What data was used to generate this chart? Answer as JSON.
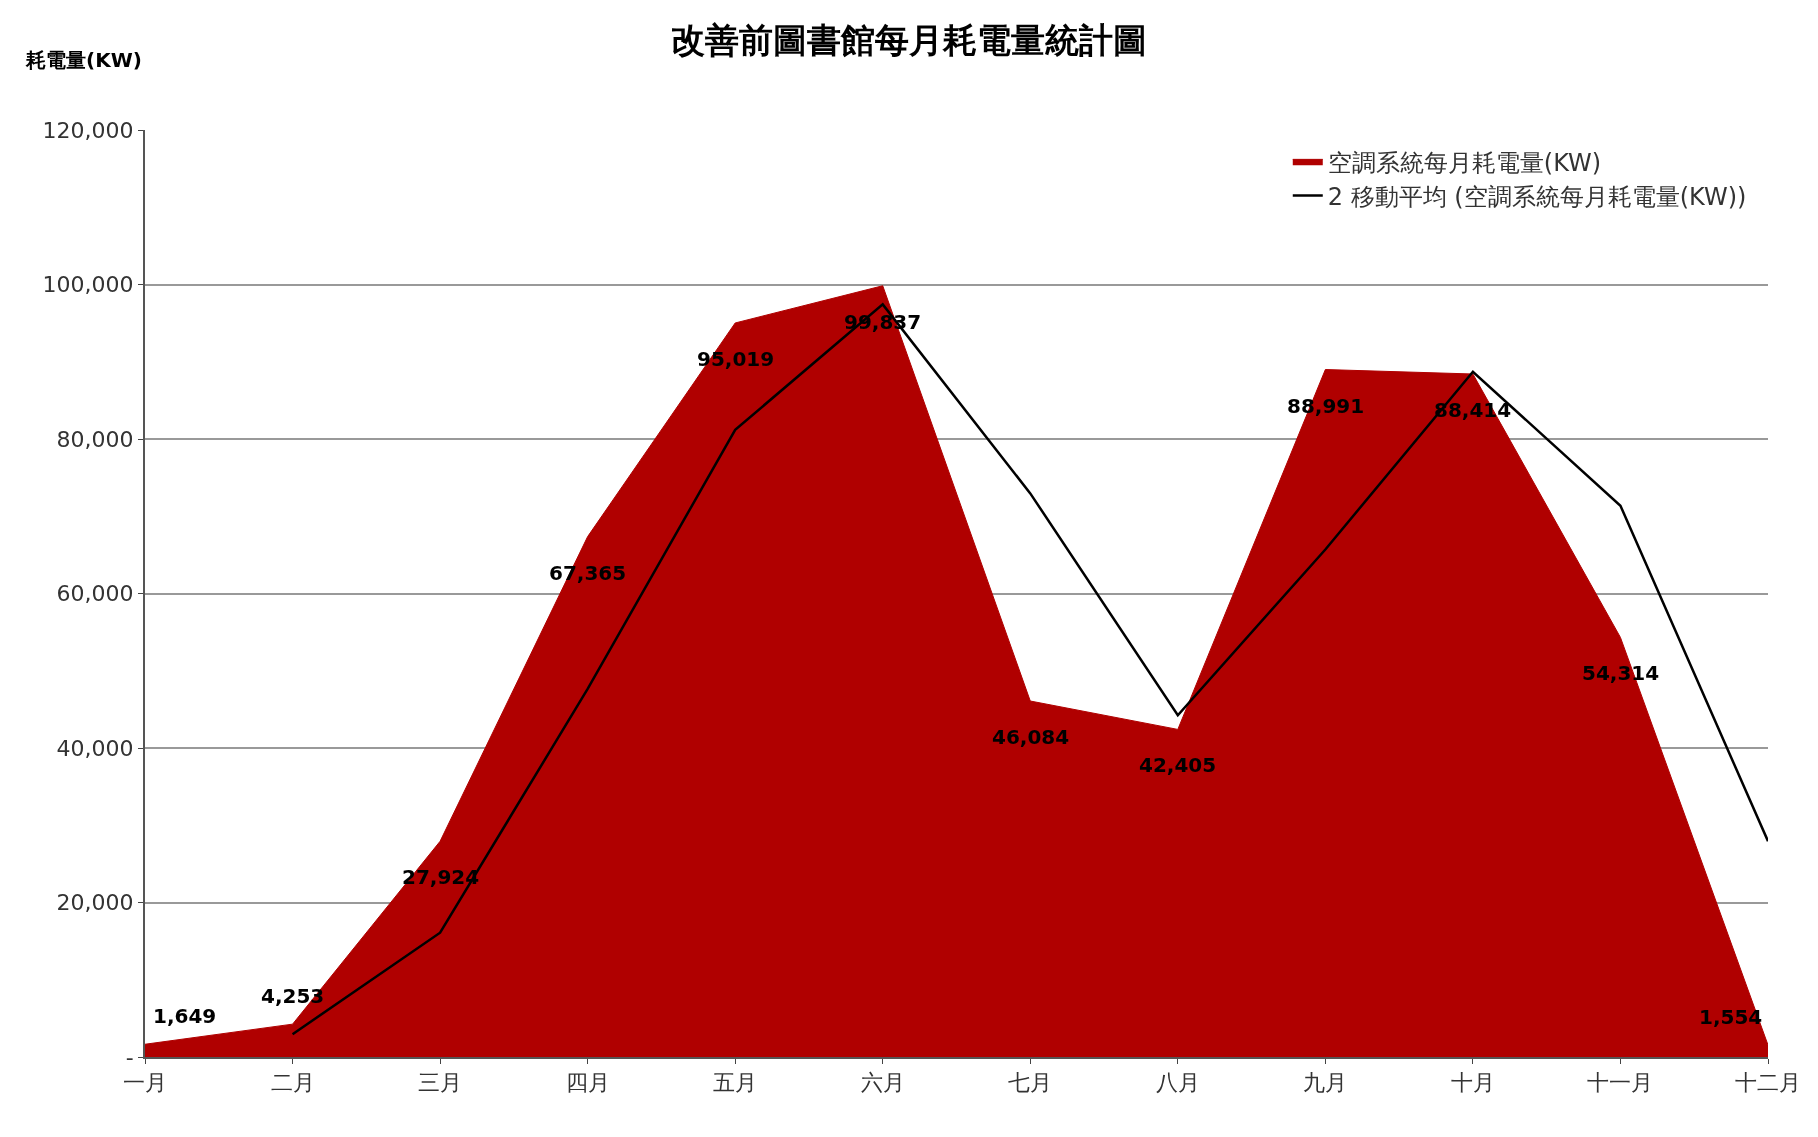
{
  "chart_data": {
    "type": "area",
    "title": "改善前圖書館每月耗電量統計圖",
    "ylabel": "耗電量(KW)",
    "categories": [
      "一月",
      "二月",
      "三月",
      "四月",
      "五月",
      "六月",
      "七月",
      "八月",
      "九月",
      "十月",
      "十一月",
      "十二月"
    ],
    "series": [
      {
        "name": "空調系統每月耗電量(KW)",
        "color": "#b00000",
        "values": [
          1649,
          4253,
          27924,
          67365,
          95019,
          99837,
          46084,
          42405,
          88991,
          88414,
          54314,
          1554
        ],
        "value_labels": [
          "1,649",
          "4,253",
          "27,924",
          "67,365",
          "95,019",
          "99,837",
          "46,084",
          "42,405",
          "88,991",
          "88,414",
          "54,314",
          "1,554"
        ]
      },
      {
        "name": "2 移動平均 (空調系統每月耗電量(KW))",
        "type": "line",
        "color": "#000000",
        "values": [
          null,
          2951,
          16088.5,
          47644.5,
          81192,
          97428,
          72960.5,
          44244.5,
          65698,
          88702.5,
          71364,
          27934
        ]
      }
    ],
    "ylim": [
      0,
      120000
    ],
    "yticks": [
      {
        "value": 0,
        "label": "-"
      },
      {
        "value": 20000,
        "label": "20,000"
      },
      {
        "value": 40000,
        "label": "40,000"
      },
      {
        "value": 60000,
        "label": "60,000"
      },
      {
        "value": 80000,
        "label": "80,000"
      },
      {
        "value": 100000,
        "label": "100,000"
      },
      {
        "value": 120000,
        "label": "120,000"
      }
    ],
    "grid": "y",
    "legend": "top right"
  }
}
